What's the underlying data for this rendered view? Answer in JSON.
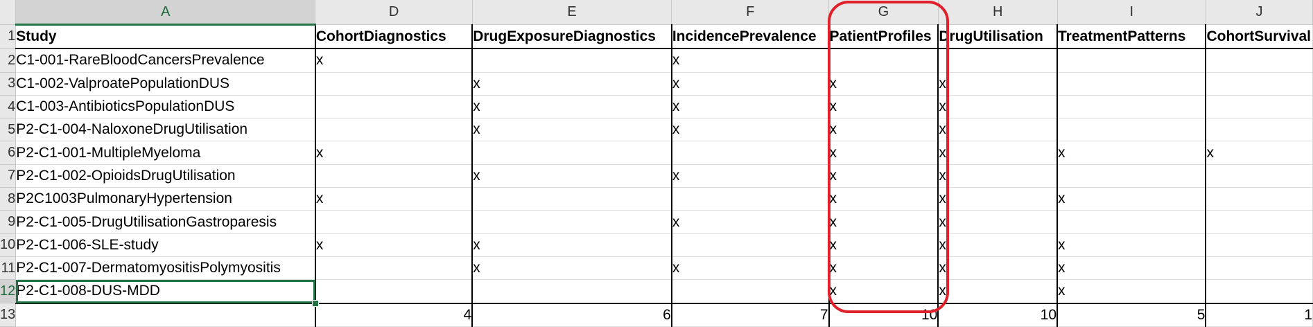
{
  "columns": [
    "A",
    "D",
    "E",
    "F",
    "G",
    "H",
    "I",
    "J"
  ],
  "row_numbers": [
    "1",
    "2",
    "3",
    "4",
    "5",
    "6",
    "7",
    "8",
    "9",
    "10",
    "11",
    "12",
    "13"
  ],
  "headers": [
    "Study",
    "CohortDiagnostics",
    "DrugExposureDiagnostics",
    "IncidencePrevalence",
    "PatientProfiles",
    "DrugUtilisation",
    "TreatmentPatterns",
    "CohortSurvival"
  ],
  "rows": [
    [
      "C1-001-RareBloodCancersPrevalence",
      "x",
      "",
      "x",
      "",
      "",
      "",
      ""
    ],
    [
      "C1-002-ValproatePopulationDUS",
      "",
      "x",
      "x",
      "x",
      "x",
      "",
      ""
    ],
    [
      "C1-003-AntibioticsPopulationDUS",
      "",
      "x",
      "x",
      "x",
      "x",
      "",
      ""
    ],
    [
      "P2-C1-004-NaloxoneDrugUtilisation",
      "",
      "x",
      "x",
      "x",
      "x",
      "",
      ""
    ],
    [
      "P2-C1-001-MultipleMyeloma",
      "x",
      "",
      "",
      "x",
      "x",
      "x",
      "x"
    ],
    [
      "P2-C1-002-OpioidsDrugUtilisation",
      "",
      "x",
      "x",
      "x",
      "x",
      "",
      ""
    ],
    [
      "P2C1003PulmonaryHypertension",
      "x",
      "",
      "",
      "x",
      "x",
      "x",
      ""
    ],
    [
      "P2-C1-005-DrugUtilisationGastroparesis",
      "",
      "",
      "x",
      "x",
      "x",
      "",
      ""
    ],
    [
      "P2-C1-006-SLE-study",
      "x",
      "x",
      "",
      "x",
      "x",
      "x",
      ""
    ],
    [
      "P2-C1-007-DermatomyositisPolymyositis",
      "",
      "x",
      "x",
      "x",
      "x",
      "x",
      ""
    ],
    [
      "P2-C1-008-DUS-MDD",
      "",
      "",
      "",
      "x",
      "x",
      "x",
      ""
    ]
  ],
  "totals": [
    "",
    "4",
    "6",
    "7",
    "10",
    "10",
    "5",
    "1"
  ],
  "active_cell": "A12",
  "colors": {
    "accent": "#217346",
    "highlight": "#e0202a"
  }
}
